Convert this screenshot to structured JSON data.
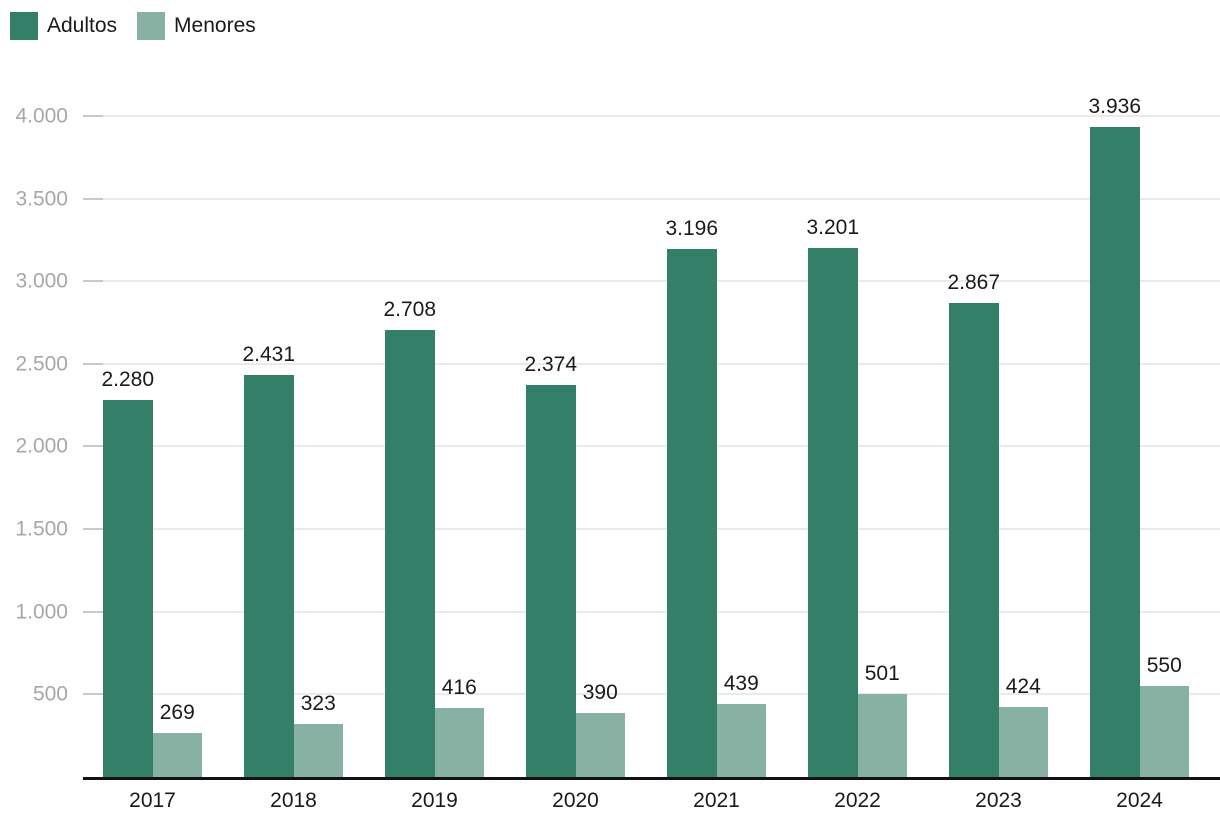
{
  "chart_data": {
    "type": "bar",
    "title": "",
    "categories": [
      "2017",
      "2018",
      "2019",
      "2020",
      "2021",
      "2022",
      "2023",
      "2024"
    ],
    "series": [
      {
        "name": "Adultos",
        "color": "#347f68",
        "values": [
          2280,
          2431,
          2708,
          2374,
          3196,
          3201,
          2867,
          3936
        ],
        "labels": [
          "2.280",
          "2.431",
          "2.708",
          "2.374",
          "3.196",
          "3.201",
          "2.867",
          "3.936"
        ]
      },
      {
        "name": "Menores",
        "color": "#87b1a2",
        "values": [
          269,
          323,
          416,
          390,
          439,
          501,
          424,
          550
        ],
        "labels": [
          "269",
          "323",
          "416",
          "390",
          "439",
          "501",
          "424",
          "550"
        ]
      }
    ],
    "y_ticks": [
      {
        "value": 500,
        "label": "500"
      },
      {
        "value": 1000,
        "label": "1.000"
      },
      {
        "value": 1500,
        "label": "1.500"
      },
      {
        "value": 2000,
        "label": "2.000"
      },
      {
        "value": 2500,
        "label": "2.500"
      },
      {
        "value": 3000,
        "label": "3.000"
      },
      {
        "value": 3500,
        "label": "3.500"
      },
      {
        "value": 4000,
        "label": "4.000"
      }
    ],
    "ylim": [
      0,
      4218
    ],
    "grid": "horizontal",
    "legend_position": "top-left",
    "value_labels": "above-bars"
  },
  "colors": {
    "axis": "#121212",
    "gridline": "#eaeaea",
    "tick": "#c9c9c9",
    "y_label": "#a7a7a7",
    "text": "#1a1a1a",
    "background": "#ffffff"
  }
}
